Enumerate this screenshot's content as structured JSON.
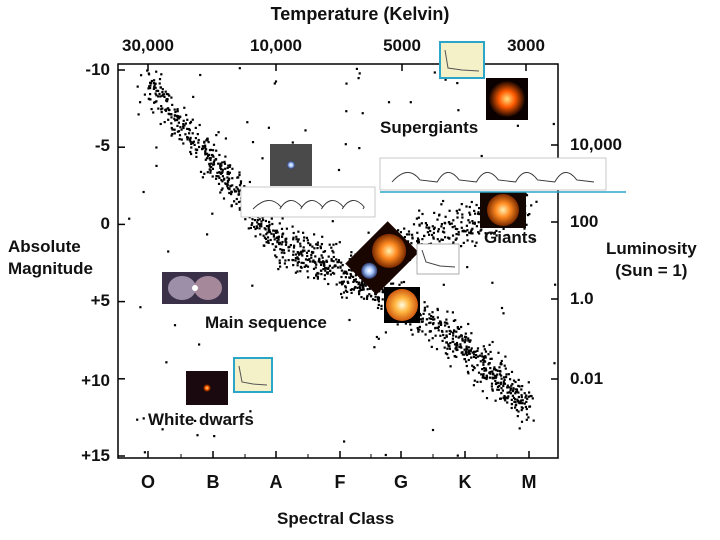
{
  "chart_data": {
    "type": "scatter",
    "title": "",
    "top_axis": {
      "label": "Temperature  (Kelvin)",
      "ticks": [
        "30,000",
        "10,000",
        "5000",
        "3000"
      ]
    },
    "left_axis": {
      "label_lines": [
        "Absolute",
        "Magnitude"
      ],
      "ticks": [
        "-10",
        "-5",
        "0",
        "+5",
        "+10",
        "+15"
      ],
      "ylim": [
        -10,
        15
      ],
      "inverted": true
    },
    "right_axis": {
      "label_lines": [
        "Luminosity",
        "(Sun = 1)"
      ],
      "ticks": [
        "10,000",
        "100",
        "1.0",
        "0.01"
      ]
    },
    "bottom_axis": {
      "label": "Spectral Class",
      "ticks": [
        "O",
        "B",
        "A",
        "F",
        "G",
        "K",
        "M"
      ]
    },
    "regions": {
      "supergiants": "Supergiants",
      "giants": "Giants",
      "main_sequence": "Main sequence",
      "white_dwarfs": "White dwarfs"
    },
    "main_sequence_trend": [
      {
        "x": "O",
        "y": -9
      },
      {
        "x": "B",
        "y": -4
      },
      {
        "x": "A",
        "y": 1
      },
      {
        "x": "F",
        "y": 3
      },
      {
        "x": "G",
        "y": 5
      },
      {
        "x": "K",
        "y": 8
      },
      {
        "x": "M",
        "y": 12
      }
    ],
    "giant_branch_trend": [
      {
        "x": "G",
        "y": 1
      },
      {
        "x": "K",
        "y": 0
      },
      {
        "x": "M",
        "y": -1
      }
    ],
    "point_color": "#000000"
  },
  "icons": {
    "star_photo": "star-photo-icon",
    "light_curve": "light-curve-icon"
  }
}
